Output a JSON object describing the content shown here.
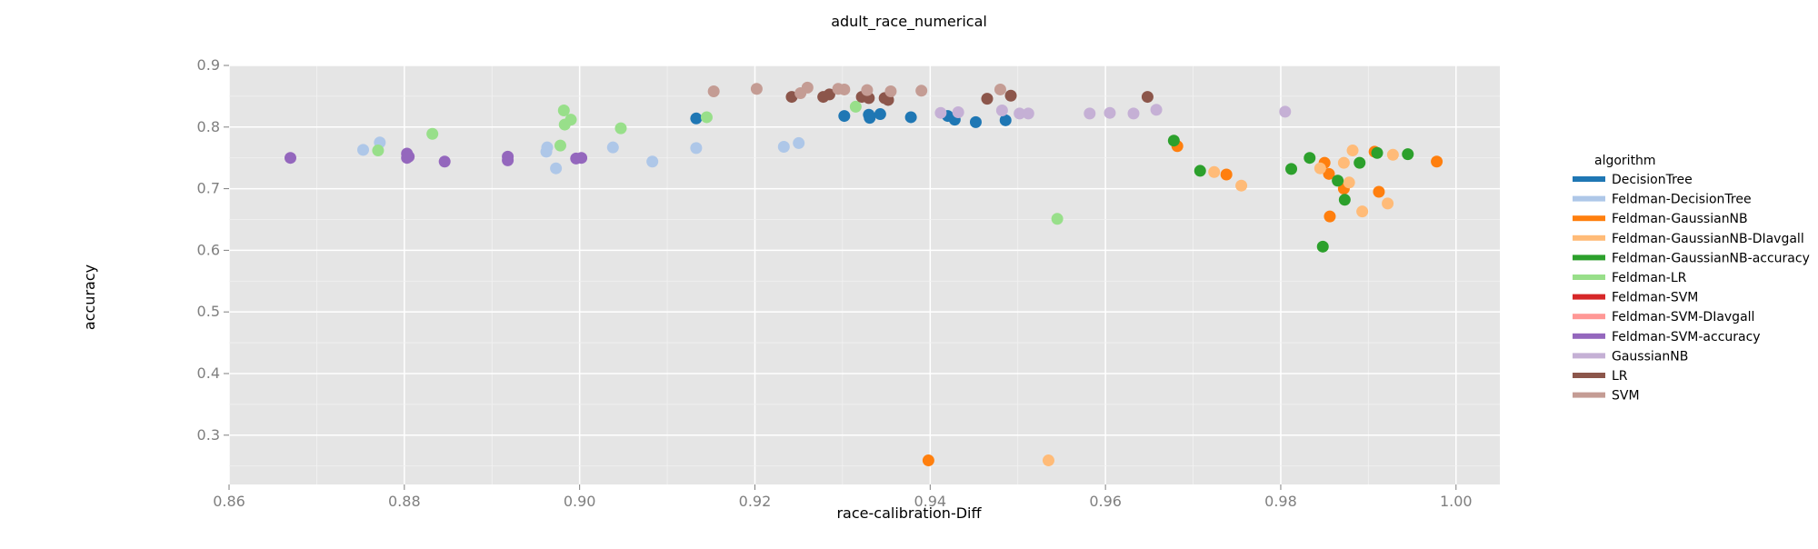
{
  "chart_data": {
    "type": "scatter",
    "title": "adult_race_numerical",
    "xlabel": "race-calibration-Diff",
    "ylabel": "accuracy",
    "xlim": [
      0.86,
      1.005
    ],
    "ylim": [
      0.22,
      0.9
    ],
    "x_ticks": [
      "0.86",
      "0.88",
      "0.90",
      "0.92",
      "0.94",
      "0.96",
      "0.98",
      "1.00"
    ],
    "y_ticks": [
      "0.3",
      "0.4",
      "0.5",
      "0.6",
      "0.7",
      "0.8",
      "0.9"
    ],
    "grid": true,
    "background": "#e5e5e5",
    "legend": {
      "title": "algorithm",
      "placement": "right"
    },
    "series": [
      {
        "name": "DecisionTree",
        "color": "#1f77b4",
        "points": [
          [
            0.9133,
            0.814
          ],
          [
            0.9302,
            0.818
          ],
          [
            0.9331,
            0.815
          ],
          [
            0.933,
            0.82
          ],
          [
            0.9343,
            0.821
          ],
          [
            0.9378,
            0.816
          ],
          [
            0.942,
            0.818
          ],
          [
            0.9428,
            0.812
          ],
          [
            0.9452,
            0.808
          ],
          [
            0.9486,
            0.811
          ]
        ]
      },
      {
        "name": "Feldman-DecisionTree",
        "color": "#aec7e8",
        "points": [
          [
            0.8753,
            0.763
          ],
          [
            0.8772,
            0.775
          ],
          [
            0.8963,
            0.767
          ],
          [
            0.8962,
            0.76
          ],
          [
            0.8973,
            0.733
          ],
          [
            0.9038,
            0.767
          ],
          [
            0.9083,
            0.744
          ],
          [
            0.9133,
            0.766
          ],
          [
            0.9233,
            0.768
          ],
          [
            0.925,
            0.774
          ]
        ]
      },
      {
        "name": "Feldman-GaussianNB",
        "color": "#ff7f0e",
        "points": [
          [
            0.9398,
            0.259
          ],
          [
            0.9682,
            0.769
          ],
          [
            0.9738,
            0.723
          ],
          [
            0.985,
            0.742
          ],
          [
            0.9855,
            0.724
          ],
          [
            0.9856,
            0.655
          ],
          [
            0.9872,
            0.7
          ],
          [
            0.9907,
            0.76
          ],
          [
            0.9912,
            0.695
          ],
          [
            0.9978,
            0.744
          ]
        ]
      },
      {
        "name": "Feldman-GaussianNB-DIavgall",
        "color": "#ffbb78",
        "points": [
          [
            0.9535,
            0.259
          ],
          [
            0.9724,
            0.727
          ],
          [
            0.9755,
            0.705
          ],
          [
            0.9845,
            0.733
          ],
          [
            0.9872,
            0.742
          ],
          [
            0.9878,
            0.71
          ],
          [
            0.9882,
            0.762
          ],
          [
            0.9893,
            0.663
          ],
          [
            0.9922,
            0.676
          ],
          [
            0.9928,
            0.755
          ]
        ]
      },
      {
        "name": "Feldman-GaussianNB-accuracy",
        "color": "#2ca02c",
        "points": [
          [
            0.9678,
            0.778
          ],
          [
            0.9708,
            0.729
          ],
          [
            0.9812,
            0.732
          ],
          [
            0.9833,
            0.75
          ],
          [
            0.9848,
            0.606
          ],
          [
            0.9865,
            0.713
          ],
          [
            0.9873,
            0.682
          ],
          [
            0.989,
            0.742
          ],
          [
            0.991,
            0.758
          ],
          [
            0.9945,
            0.756
          ]
        ]
      },
      {
        "name": "Feldman-LR",
        "color": "#98df8a",
        "points": [
          [
            0.877,
            0.762
          ],
          [
            0.8832,
            0.789
          ],
          [
            0.8978,
            0.77
          ],
          [
            0.8982,
            0.827
          ],
          [
            0.8983,
            0.804
          ],
          [
            0.899,
            0.812
          ],
          [
            0.9047,
            0.798
          ],
          [
            0.9145,
            0.816
          ],
          [
            0.9315,
            0.833
          ],
          [
            0.9545,
            0.651
          ]
        ]
      },
      {
        "name": "Feldman-SVM",
        "color": "#d62728",
        "points": []
      },
      {
        "name": "Feldman-SVM-DIavgall",
        "color": "#ff9896",
        "points": []
      },
      {
        "name": "Feldman-SVM-accuracy",
        "color": "#9467bd",
        "points": [
          [
            0.867,
            0.75
          ],
          [
            0.8803,
            0.757
          ],
          [
            0.8803,
            0.75
          ],
          [
            0.8805,
            0.752
          ],
          [
            0.8846,
            0.744
          ],
          [
            0.8918,
            0.752
          ],
          [
            0.8918,
            0.746
          ],
          [
            0.8996,
            0.749
          ],
          [
            0.9002,
            0.75
          ]
        ]
      },
      {
        "name": "GaussianNB",
        "color": "#c5b0d5",
        "points": [
          [
            0.9412,
            0.823
          ],
          [
            0.9432,
            0.824
          ],
          [
            0.9482,
            0.827
          ],
          [
            0.9502,
            0.822
          ],
          [
            0.9512,
            0.822
          ],
          [
            0.9582,
            0.822
          ],
          [
            0.9605,
            0.823
          ],
          [
            0.9632,
            0.822
          ],
          [
            0.9658,
            0.828
          ],
          [
            0.9805,
            0.825
          ]
        ]
      },
      {
        "name": "LR",
        "color": "#8c564b",
        "points": [
          [
            0.9242,
            0.849
          ],
          [
            0.9278,
            0.849
          ],
          [
            0.9285,
            0.853
          ],
          [
            0.9322,
            0.849
          ],
          [
            0.933,
            0.847
          ],
          [
            0.9348,
            0.847
          ],
          [
            0.9352,
            0.844
          ],
          [
            0.9465,
            0.846
          ],
          [
            0.9492,
            0.851
          ],
          [
            0.9648,
            0.849
          ]
        ]
      },
      {
        "name": "SVM",
        "color": "#c49c94",
        "points": [
          [
            0.9153,
            0.858
          ],
          [
            0.9202,
            0.862
          ],
          [
            0.9252,
            0.855
          ],
          [
            0.926,
            0.864
          ],
          [
            0.9295,
            0.862
          ],
          [
            0.9302,
            0.861
          ],
          [
            0.9328,
            0.86
          ],
          [
            0.9355,
            0.858
          ],
          [
            0.939,
            0.859
          ],
          [
            0.948,
            0.861
          ]
        ]
      }
    ]
  }
}
